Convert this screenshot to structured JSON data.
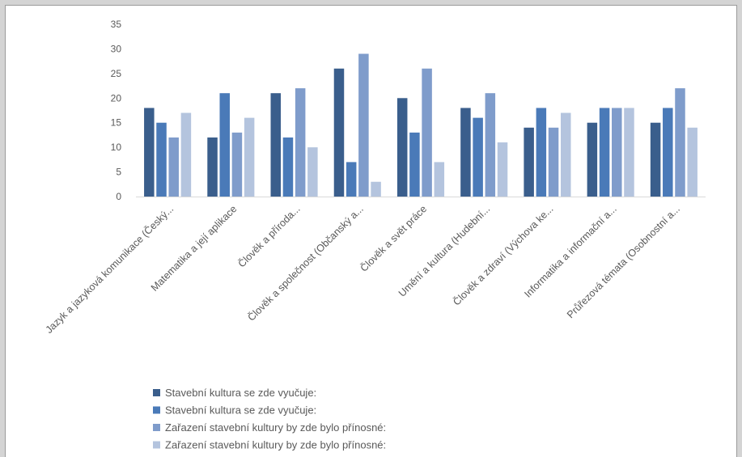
{
  "chart_data": {
    "type": "bar",
    "categories": [
      "Jazyk a jazyková komunikace (Český...",
      "Matematika a její aplikace",
      "Člověk a příroda...",
      "Člověk a společnost (Občanský a...",
      "Člověk a svět práce",
      "Umění a kultura (Hudební...",
      "Člověk a zdraví (Výchova ke...",
      "Informatika a informační a...",
      "Průřezová témata (Osobnostní a..."
    ],
    "series": [
      {
        "name": "Stavební kultura se zde vyučuje:",
        "color": "#3a5e8c",
        "values": [
          18,
          12,
          21,
          26,
          20,
          18,
          14,
          15,
          15
        ]
      },
      {
        "name": "Stavební kultura se zde vyučuje:",
        "color": "#4a7ab8",
        "values": [
          15,
          21,
          12,
          7,
          13,
          16,
          18,
          18,
          18
        ]
      },
      {
        "name": "Zařazení stavební kultury by zde bylo přínosné:",
        "color": "#7f9ccb",
        "values": [
          12,
          13,
          22,
          29,
          26,
          21,
          14,
          18,
          22
        ]
      },
      {
        "name": "Zařazení stavební kultury by zde bylo přínosné:",
        "color": "#b4c4de",
        "values": [
          17,
          16,
          10,
          3,
          7,
          11,
          17,
          18,
          14
        ]
      }
    ],
    "ylim": [
      0,
      35
    ],
    "yticks": [
      0,
      5,
      10,
      15,
      20,
      25,
      30,
      35
    ],
    "grid": false,
    "legend_position": "bottom-left"
  }
}
